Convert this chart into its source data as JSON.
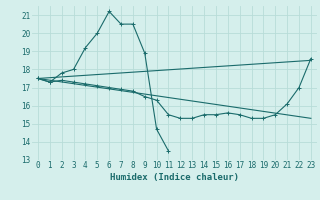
{
  "xlabel": "Humidex (Indice chaleur)",
  "background_color": "#d5efec",
  "grid_color": "#b8dcd8",
  "line_color": "#1a6b6b",
  "xlim": [
    -0.5,
    23.5
  ],
  "ylim": [
    13,
    21.5
  ],
  "yticks": [
    13,
    14,
    15,
    16,
    17,
    18,
    19,
    20,
    21
  ],
  "xticks": [
    0,
    1,
    2,
    3,
    4,
    5,
    6,
    7,
    8,
    9,
    10,
    11,
    12,
    13,
    14,
    15,
    16,
    17,
    18,
    19,
    20,
    21,
    22,
    23
  ],
  "series": [
    {
      "x": [
        0,
        1,
        2,
        3,
        4,
        5,
        6,
        7,
        8,
        9,
        10,
        11
      ],
      "y": [
        17.5,
        17.3,
        17.8,
        18.0,
        19.2,
        20.0,
        21.2,
        20.5,
        20.5,
        18.9,
        14.7,
        13.5
      ],
      "marker": true
    },
    {
      "x": [
        0,
        1,
        2,
        3,
        4,
        5,
        6,
        7,
        8,
        9,
        10,
        11,
        12,
        13,
        14,
        15,
        16,
        17,
        18,
        19,
        20,
        21,
        22,
        23
      ],
      "y": [
        17.5,
        17.3,
        17.4,
        17.3,
        17.2,
        17.1,
        17.0,
        16.9,
        16.8,
        16.5,
        16.3,
        15.5,
        15.3,
        15.3,
        15.5,
        15.5,
        15.6,
        15.5,
        15.3,
        15.3,
        15.5,
        16.1,
        17.0,
        18.6
      ],
      "marker": true
    },
    {
      "x": [
        0,
        23
      ],
      "y": [
        17.5,
        18.5
      ],
      "marker": false
    },
    {
      "x": [
        0,
        23
      ],
      "y": [
        17.5,
        15.3
      ],
      "marker": false
    }
  ]
}
